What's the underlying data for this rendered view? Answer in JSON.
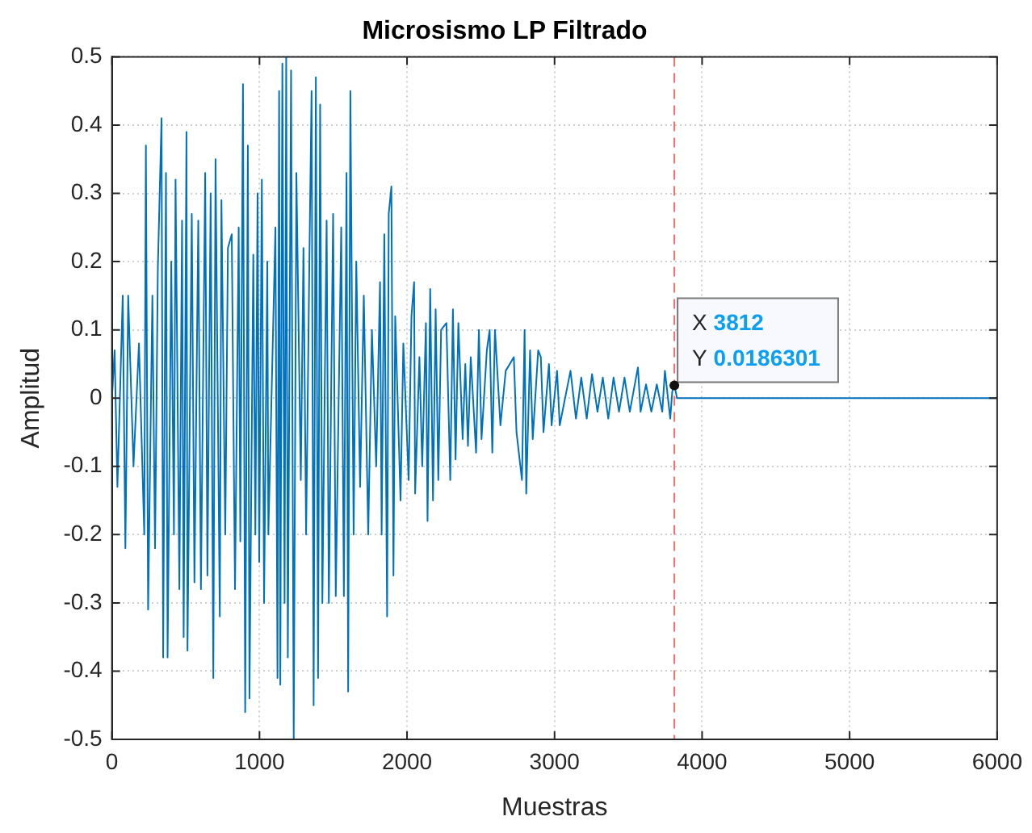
{
  "chart_data": {
    "type": "line",
    "title": "Microsismo LP Filtrado",
    "xlabel": "Muestras",
    "ylabel": "Amplitud",
    "xlim": [
      0,
      6000
    ],
    "xticks": [
      0,
      1000,
      2000,
      3000,
      4000,
      5000,
      6000
    ],
    "ylim": [
      -0.5,
      0.5
    ],
    "yticks": [
      -0.5,
      -0.4,
      -0.3,
      -0.2,
      -0.1,
      0,
      0.1,
      0.2,
      0.3,
      0.4,
      0.5
    ],
    "grid": true,
    "legend": false,
    "marker": "none",
    "line_style": "solid",
    "ref_lines": [
      {
        "axis": "x",
        "value": 3812,
        "color": "#f26d6d",
        "line_style": "dashed"
      }
    ],
    "annotations": [
      {
        "text": "X 3812",
        "x": 3812,
        "y": 0.0186301
      },
      {
        "text": "Y 0.0186301",
        "x": 3812,
        "y": 0.0186301
      }
    ],
    "series": [
      {
        "color": "#0072bd",
        "x": [
          0,
          18,
          37,
          73,
          91,
          110,
          146,
          183,
          219,
          230,
          245,
          274,
          292,
          311,
          336,
          347,
          366,
          377,
          402,
          420,
          431,
          457,
          475,
          486,
          505,
          512,
          541,
          559,
          585,
          603,
          632,
          647,
          669,
          687,
          702,
          731,
          742,
          768,
          786,
          812,
          834,
          859,
          870,
          888,
          903,
          921,
          932,
          958,
          972,
          987,
          998,
          1016,
          1031,
          1053,
          1060,
          1108,
          1122,
          1133,
          1141,
          1155,
          1170,
          1181,
          1192,
          1214,
          1232,
          1250,
          1280,
          1298,
          1316,
          1338,
          1353,
          1367,
          1382,
          1397,
          1411,
          1426,
          1455,
          1470,
          1499,
          1517,
          1554,
          1572,
          1590,
          1601,
          1616,
          1638,
          1656,
          1682,
          1707,
          1737,
          1762,
          1791,
          1817,
          1828,
          1846,
          1865,
          1876,
          1894,
          1908,
          1920,
          1956,
          1975,
          2011,
          2030,
          2048,
          2055,
          2084,
          2103,
          2128,
          2139,
          2157,
          2176,
          2194,
          2212,
          2231,
          2267,
          2293,
          2311,
          2329,
          2348,
          2377,
          2395,
          2413,
          2432,
          2468,
          2487,
          2505,
          2541,
          2560,
          2578,
          2596,
          2633,
          2669,
          2724,
          2742,
          2779,
          2797,
          2808,
          2834,
          2852,
          2889,
          2907,
          2925,
          2962,
          2980,
          3017,
          3035,
          3108,
          3145,
          3181,
          3218,
          3254,
          3291,
          3327,
          3364,
          3400,
          3437,
          3474,
          3510,
          3565,
          3583,
          3620,
          3656,
          3693,
          3730,
          3748,
          3784,
          3798,
          3812,
          3830,
          6000
        ],
        "values": [
          0,
          0.07,
          -0.13,
          0.15,
          -0.22,
          0.15,
          -0.1,
          0.08,
          -0.2,
          0.37,
          -0.31,
          0.15,
          -0.22,
          0.19,
          0.41,
          -0.38,
          0.33,
          -0.38,
          0.2,
          -0.2,
          0.32,
          -0.28,
          0.26,
          -0.35,
          0.39,
          -0.37,
          0.27,
          -0.27,
          0.26,
          -0.28,
          0.33,
          -0.26,
          0.3,
          -0.41,
          0.35,
          -0.32,
          0.29,
          -0.2,
          0.22,
          0.24,
          -0.28,
          0.25,
          -0.21,
          0.46,
          -0.46,
          0.37,
          -0.44,
          0.21,
          -0.2,
          0.3,
          -0.24,
          0.32,
          -0.3,
          0.2,
          -0.2,
          0.25,
          -0.41,
          0.45,
          -0.42,
          0.49,
          -0.3,
          0.5,
          -0.38,
          0.48,
          -0.5,
          0.33,
          -0.12,
          0.22,
          -0.2,
          0.2,
          0.45,
          -0.45,
          0.47,
          -0.41,
          0.43,
          -0.3,
          0.26,
          -0.3,
          0.27,
          -0.29,
          0.25,
          -0.29,
          0.33,
          -0.43,
          0.45,
          -0.2,
          0.2,
          -0.13,
          0.15,
          -0.2,
          0.1,
          -0.1,
          0.17,
          -0.2,
          0.24,
          -0.32,
          0.27,
          0.31,
          -0.26,
          0.12,
          -0.15,
          0.08,
          -0.12,
          0.12,
          0.17,
          -0.14,
          0.06,
          -0.1,
          0.11,
          -0.18,
          0.16,
          -0.15,
          0.13,
          -0.12,
          0.1,
          0.11,
          -0.12,
          0.13,
          -0.09,
          0.11,
          -0.06,
          0.05,
          -0.07,
          0.06,
          -0.08,
          0.1,
          -0.06,
          0.07,
          0.1,
          -0.08,
          0.1,
          -0.04,
          0.04,
          0.06,
          -0.05,
          -0.12,
          0.1,
          -0.14,
          0.07,
          -0.06,
          0.07,
          0.06,
          -0.05,
          0.05,
          -0.04,
          0.04,
          -0.04,
          0.04,
          -0.03,
          0.03,
          -0.03,
          0.035,
          -0.02,
          0.03,
          -0.03,
          0.03,
          -0.02,
          0.03,
          -0.02,
          0.045,
          -0.02,
          0.02,
          -0.02,
          0.02,
          -0.02,
          0.04,
          -0.03,
          0.01,
          0.019,
          0,
          0
        ]
      }
    ]
  }
}
